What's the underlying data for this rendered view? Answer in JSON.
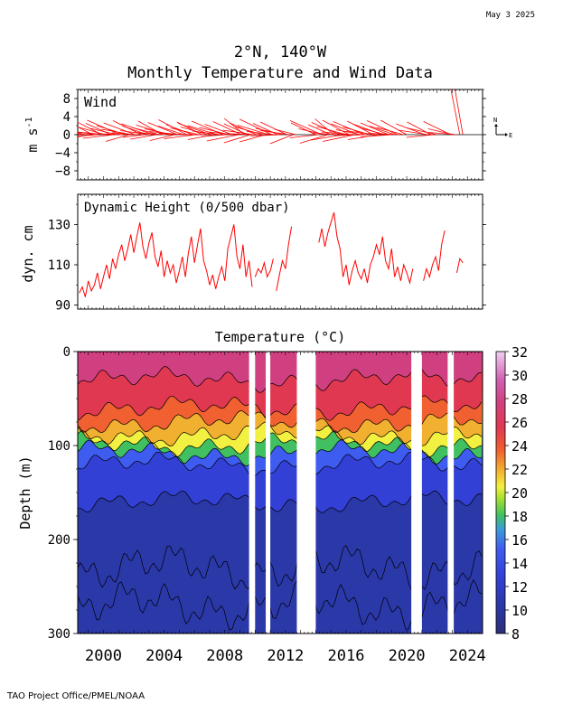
{
  "header": {
    "date": "May  3 2025",
    "location": "2°N, 140°W",
    "title": "Monthly Temperature and Wind Data"
  },
  "footer": {
    "credit": "TAO Project Office/PMEL/NOAA"
  },
  "colors": {
    "wind": "#ff0000",
    "dynamic_height": "#ff0000",
    "contour": "#000000",
    "gap": "#ffffff"
  },
  "chart_data": [
    {
      "type": "line",
      "panel": "wind",
      "title": "Wind",
      "ylabel": "m s",
      "ylabel_sup": "-1",
      "ylim": [
        -10,
        10
      ],
      "yticks": [
        "8",
        "4",
        "0",
        "−4",
        "−8"
      ],
      "xlim": [
        1998.3,
        2025.0
      ],
      "compass": {
        "north": "N",
        "east": "E"
      },
      "series": [
        {
          "x": [
            1998.5,
            1998.7,
            1998.9,
            1999.1,
            1999.3,
            1999.5,
            1999.7,
            1999.9,
            2000.1,
            2000.3,
            2000.5,
            2000.7,
            2000.9,
            2001.1,
            2001.3,
            2001.5,
            2001.7,
            2001.9,
            2002.1,
            2002.3,
            2002.5,
            2002.7,
            2002.9,
            2003.1,
            2003.3,
            2003.5,
            2003.7,
            2003.9,
            2004.1,
            2004.3,
            2004.5,
            2004.7,
            2004.9,
            2005.1,
            2005.3,
            2005.5,
            2005.7,
            2005.9,
            2006.1,
            2006.3,
            2006.5,
            2006.7,
            2006.9,
            2007.1,
            2007.3,
            2007.5,
            2007.7,
            2007.9,
            2008.1,
            2008.3,
            2008.5,
            2008.7,
            2008.9,
            2009.1,
            2009.3,
            2009.5,
            2009.7,
            2009.9,
            2010.1,
            2010.3,
            2010.5,
            2010.7,
            2010.9,
            2011.1,
            2011.3,
            2011.5,
            2011.7,
            2011.9,
            2012.1,
            2012.3,
            2012.5,
            2012.7,
            2014.0,
            2014.2,
            2014.4,
            2014.6,
            2014.8,
            2015.0,
            2015.2,
            2015.4,
            2015.6,
            2015.8,
            2016.0,
            2016.2,
            2016.4,
            2016.6,
            2016.8,
            2017.0,
            2017.2,
            2017.4,
            2017.6,
            2017.8,
            2018.0,
            2018.2,
            2018.4,
            2018.6,
            2018.8,
            2019.0,
            2019.2,
            2019.4,
            2019.6,
            2019.8,
            2020.0,
            2021.2,
            2021.4,
            2021.6,
            2021.8,
            2022.0,
            2022.9,
            2023.1,
            2023.3,
            2023.5,
            2023.7
          ],
          "u": [
            -6.5,
            -5.8,
            -7.0,
            -6.2,
            -5.5,
            -6.8,
            -7.2,
            -5.9,
            -6.4,
            -7.1,
            -5.6,
            -6.9,
            -6.0,
            -7.3,
            -5.7,
            -6.6,
            -5.2,
            -6.8,
            -7.0,
            -5.9,
            -6.3,
            -4.8,
            -5.5,
            -6.7,
            -7.1,
            -5.8,
            -6.2,
            -5.4,
            -6.9,
            -7.2,
            -6.0,
            -5.5,
            -6.6,
            -7.0,
            -5.7,
            -6.3,
            -6.8,
            -5.9,
            -7.1,
            -6.4,
            -5.6,
            -6.9,
            -6.1,
            -7.3,
            -5.8,
            -6.5,
            -6.2,
            -7.0,
            -5.4,
            -6.7,
            -6.1,
            -5.9,
            -7.0,
            -6.3,
            -4.5,
            -5.2,
            -5.9,
            -6.8,
            -6.0,
            -7.2,
            -6.4,
            -5.8,
            -6.9,
            -7.1,
            -6.2,
            -5.5,
            -6.7,
            -6.3,
            -5.9,
            -6.6,
            -5.1,
            -4.8,
            -5.5,
            -6.4,
            -7.0,
            -5.8,
            -6.2,
            -5.0,
            -4.2,
            -5.6,
            -6.3,
            -7.1,
            -6.5,
            -5.9,
            -6.8,
            -7.2,
            -6.0,
            -5.6,
            -6.9,
            -7.3,
            -6.1,
            -5.8,
            -6.6,
            -7.0,
            -6.4,
            -5.7,
            -6.2,
            -6.9,
            -5.5,
            -6.8,
            -7.1,
            -6.0,
            -5.8,
            -6.4,
            -6.5,
            -5.3,
            -6.1,
            -6.8,
            -6.0,
            -5.7,
            -6.3,
            -5.9,
            -5.2
          ],
          "v": [
            1.5,
            2.2,
            0.8,
            -1.2,
            2.8,
            1.0,
            -0.5,
            3.0,
            1.8,
            0.6,
            2.5,
            -0.8,
            1.4,
            3.2,
            0.2,
            2.0,
            -1.5,
            1.2,
            2.6,
            0.4,
            3.1,
            -0.6,
            1.9,
            0.9,
            2.4,
            -1.0,
            1.6,
            3.0,
            0.5,
            2.1,
            1.3,
            -1.3,
            2.7,
            0.7,
            1.9,
            3.3,
            0.3,
            2.2,
            -0.9,
            1.5,
            2.8,
            0.1,
            1.7,
            2.5,
            -1.1,
            2.0,
            0.8,
            3.0,
            -0.4,
            1.6,
            2.3,
            0.6,
            -1.4,
            2.9,
            3.6,
            2.4,
            -1.8,
            1.0,
            2.6,
            0.2,
            1.8,
            -1.6,
            2.1,
            3.4,
            0.7,
            2.5,
            -0.3,
            1.4,
            2.8,
            0.9,
            -2.0,
            1.2,
            2.6,
            -0.7,
            3.1,
            1.3,
            -1.9,
            2.2,
            3.5,
            0.4,
            2.7,
            -1.2,
            1.8,
            3.2,
            0.6,
            -1.5,
            2.4,
            1.1,
            2.9,
            -0.2,
            1.7,
            3.0,
            0.8,
            -1.1,
            2.3,
            1.5,
            2.6,
            -0.5,
            1.9,
            3.1,
            0.3,
            1.6,
            3.2,
            2.4,
            1.0,
            2.8,
            -0.6,
            1.5,
            2.9,
            1.3,
            0.5
          ]
        }
      ]
    },
    {
      "type": "line",
      "panel": "dynamic_height",
      "title": "Dynamic Height (0/500 dbar)",
      "ylabel": "dyn. cm",
      "ylim": [
        88,
        145
      ],
      "yticks": [
        "130",
        "110",
        "90"
      ],
      "xlim": [
        1998.3,
        2025.0
      ],
      "series": [
        {
          "segments": [
            {
              "x": [
                1998.4,
                1998.6,
                1998.8,
                1999.0,
                1999.2,
                1999.4,
                1999.6,
                1999.8,
                2000.0,
                2000.2,
                2000.4,
                2000.6,
                2000.8,
                2001.0,
                2001.2,
                2001.4,
                2001.6,
                2001.8,
                2002.0,
                2002.2,
                2002.4,
                2002.6,
                2002.8,
                2003.0,
                2003.2,
                2003.4,
                2003.6,
                2003.8,
                2004.0,
                2004.2,
                2004.4,
                2004.6,
                2004.8,
                2005.0,
                2005.2,
                2005.4,
                2005.6,
                2005.8,
                2006.0,
                2006.2,
                2006.4,
                2006.6,
                2006.8,
                2007.0,
                2007.2,
                2007.4,
                2007.6,
                2007.8,
                2008.0,
                2008.2,
                2008.4,
                2008.6,
                2008.8,
                2009.0,
                2009.2,
                2009.4,
                2009.6,
                2009.8
              ],
              "y": [
                96,
                99,
                94,
                102,
                97,
                100,
                106,
                98,
                104,
                110,
                103,
                113,
                108,
                115,
                120,
                112,
                118,
                125,
                116,
                124,
                131,
                119,
                113,
                121,
                126,
                114,
                109,
                117,
                104,
                112,
                106,
                110,
                101,
                107,
                114,
                104,
                116,
                124,
                111,
                120,
                128,
                112,
                107,
                100,
                105,
                98,
                104,
                109,
                102,
                118,
                124,
                130,
                114,
                108,
                120,
                104,
                112,
                99
              ]
            },
            {
              "x": [
                2010.0,
                2010.2,
                2010.4,
                2010.6,
                2010.8,
                2011.0,
                2011.2
              ],
              "y": [
                104,
                108,
                106,
                111,
                104,
                107,
                113
              ]
            },
            {
              "x": [
                2011.4,
                2011.6,
                2011.8,
                2012.0,
                2012.2,
                2012.4
              ],
              "y": [
                97,
                105,
                112,
                108,
                120,
                129
              ]
            },
            {
              "x": [
                2014.2,
                2014.4,
                2014.6,
                2014.8,
                2015.0,
                2015.2,
                2015.4,
                2015.6,
                2015.8,
                2016.0,
                2016.2,
                2016.4,
                2016.6,
                2016.8,
                2017.0,
                2017.2,
                2017.4,
                2017.6,
                2017.8,
                2018.0,
                2018.2,
                2018.4,
                2018.6,
                2018.8,
                2019.0,
                2019.2,
                2019.4,
                2019.6,
                2019.8,
                2020.0,
                2020.2,
                2020.4
              ],
              "y": [
                121,
                128,
                119,
                126,
                131,
                136,
                124,
                118,
                104,
                110,
                100,
                107,
                112,
                106,
                103,
                108,
                101,
                110,
                114,
                120,
                115,
                124,
                112,
                108,
                118,
                104,
                109,
                102,
                110,
                106,
                101,
                108
              ]
            },
            {
              "x": [
                2021.1,
                2021.3,
                2021.5,
                2021.7,
                2021.9,
                2022.1,
                2022.3,
                2022.5
              ],
              "y": [
                102,
                108,
                104,
                110,
                114,
                107,
                120,
                127
              ]
            },
            {
              "x": [
                2023.3,
                2023.5,
                2023.7
              ],
              "y": [
                106,
                113,
                111
              ]
            }
          ]
        }
      ]
    },
    {
      "type": "heatmap",
      "panel": "temperature",
      "title": "Temperature (°C)",
      "ylabel": "Depth (m)",
      "ylim": [
        300,
        0
      ],
      "yticks": [
        "0",
        "100",
        "200",
        "300"
      ],
      "xlim": [
        1998.3,
        2025.0
      ],
      "xticks": [
        "2000",
        "2004",
        "2008",
        "2012",
        "2016",
        "2020",
        "2024"
      ],
      "xtick_values": [
        2000,
        2004,
        2008,
        2012,
        2016,
        2020,
        2024
      ],
      "colorbar": {
        "ticks": [
          "32",
          "30",
          "28",
          "26",
          "24",
          "22",
          "20",
          "18",
          "16",
          "14",
          "12",
          "10",
          "8"
        ],
        "range": [
          8,
          32
        ]
      },
      "gaps": [
        [
          2009.6,
          2010.0
        ],
        [
          2010.7,
          2011.0
        ],
        [
          2012.75,
          2014.0
        ],
        [
          2020.3,
          2021.0
        ],
        [
          2022.7,
          2023.1
        ]
      ],
      "isotherm_depths_m": {
        "28": 30,
        "26": 60,
        "24": 75,
        "22": 88,
        "20": 98,
        "18": 108,
        "16": 120,
        "14": 160
      }
    }
  ]
}
